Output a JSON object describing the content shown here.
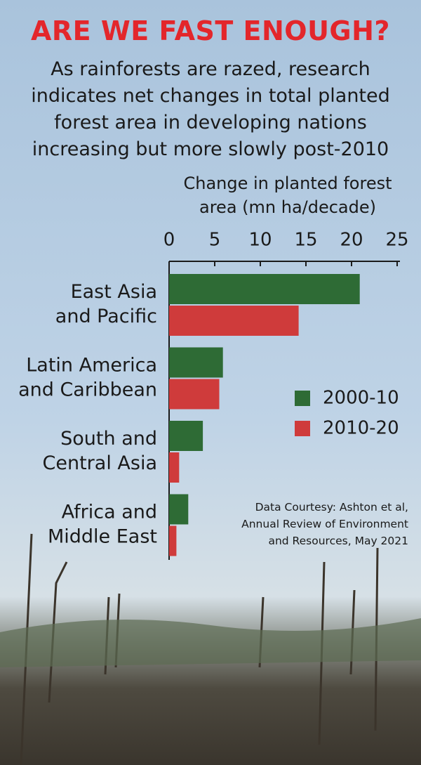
{
  "chart_data": {
    "type": "bar",
    "orientation": "horizontal",
    "title": "ARE WE FAST ENOUGH?",
    "subtitle": "As rainforests are razed, research indicates net changes in total planted forest area in developing nations increasing but more slowly post-2010",
    "x_label": "Change in planted forest area (mn ha/decade)",
    "categories": [
      [
        "East Asia",
        "and Pacific"
      ],
      [
        "Latin America",
        "and Caribbean"
      ],
      [
        "South and",
        "Central Asia"
      ],
      [
        "Africa and",
        "Middle East"
      ]
    ],
    "series": [
      {
        "name": "2000-10",
        "color": "#2e6b35",
        "values": [
          20.9,
          5.9,
          3.7,
          2.1
        ]
      },
      {
        "name": "2010-20",
        "color": "#cf3b3b",
        "values": [
          14.2,
          5.5,
          1.1,
          0.8
        ]
      }
    ],
    "xlim": [
      0,
      25
    ],
    "xticks": [
      0,
      5,
      10,
      15,
      20,
      25
    ],
    "legend": "right",
    "source": "Data Courtesy: Ashton et al, Annual Review of Environment and Resources, May 2021"
  }
}
